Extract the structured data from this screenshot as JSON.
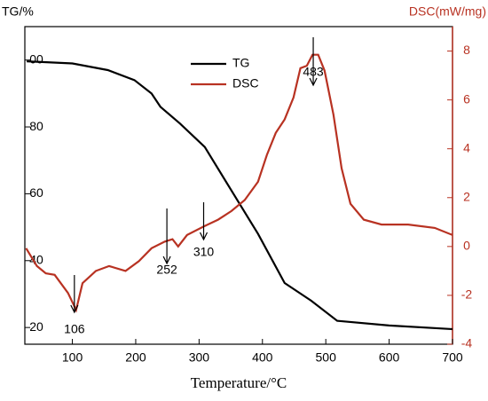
{
  "chart_data": {
    "type": "line",
    "ylabel": "TG/%",
    "y2label": "DSC(mW/mg)",
    "xlabel": "Temperature/°C",
    "xlim": [
      25,
      700
    ],
    "xticks": [
      100,
      200,
      300,
      400,
      500,
      600,
      700
    ],
    "ylim": [
      15,
      110
    ],
    "yticks": [
      20,
      40,
      60,
      80,
      {
        "value": 100,
        "label": "00"
      }
    ],
    "y2lim": [
      -4,
      9
    ],
    "y2ticks": [
      -4,
      -2,
      0,
      2,
      4,
      6,
      8
    ],
    "series": [
      {
        "name": "TG",
        "color": "#000000",
        "x": [
          28,
          44,
          100,
          156,
          198,
          225,
          239,
          270,
          309,
          351,
          393,
          435,
          477,
          518,
          600,
          700
        ],
        "values": [
          99.6,
          99.5,
          99,
          97,
          94,
          90,
          86,
          81,
          74,
          61,
          48,
          33.3,
          28,
          22,
          20.6,
          19.5
        ]
      },
      {
        "name": "DSC",
        "color": "#b83222",
        "axis": "y2",
        "x": [
          27,
          44,
          58,
          72,
          93,
          106,
          116,
          137,
          158,
          184,
          205,
          225,
          246,
          258,
          267,
          281,
          309,
          330,
          351,
          372,
          393,
          407,
          421,
          435,
          449,
          460,
          470,
          479,
          488,
          498,
          512,
          525,
          539,
          560,
          588,
          630,
          672,
          700
        ],
        "values": [
          -0.07,
          -0.8,
          -1.1,
          -1.16,
          -1.9,
          -2.6,
          -1.5,
          -1,
          -0.8,
          -1,
          -0.6,
          -0.07,
          0.2,
          0.3,
          0,
          0.47,
          0.84,
          1.1,
          1.45,
          1.9,
          2.65,
          3.75,
          4.65,
          5.2,
          6.1,
          7.3,
          7.4,
          7.85,
          7.85,
          7.2,
          5.4,
          3.2,
          1.75,
          1.1,
          0.9,
          0.9,
          0.76,
          0.47
        ]
      }
    ],
    "annotations": [
      {
        "text": "106",
        "x": 106
      },
      {
        "text": "252",
        "x": 252
      },
      {
        "text": "310",
        "x": 310
      },
      {
        "text": "483",
        "x": 483
      }
    ]
  }
}
